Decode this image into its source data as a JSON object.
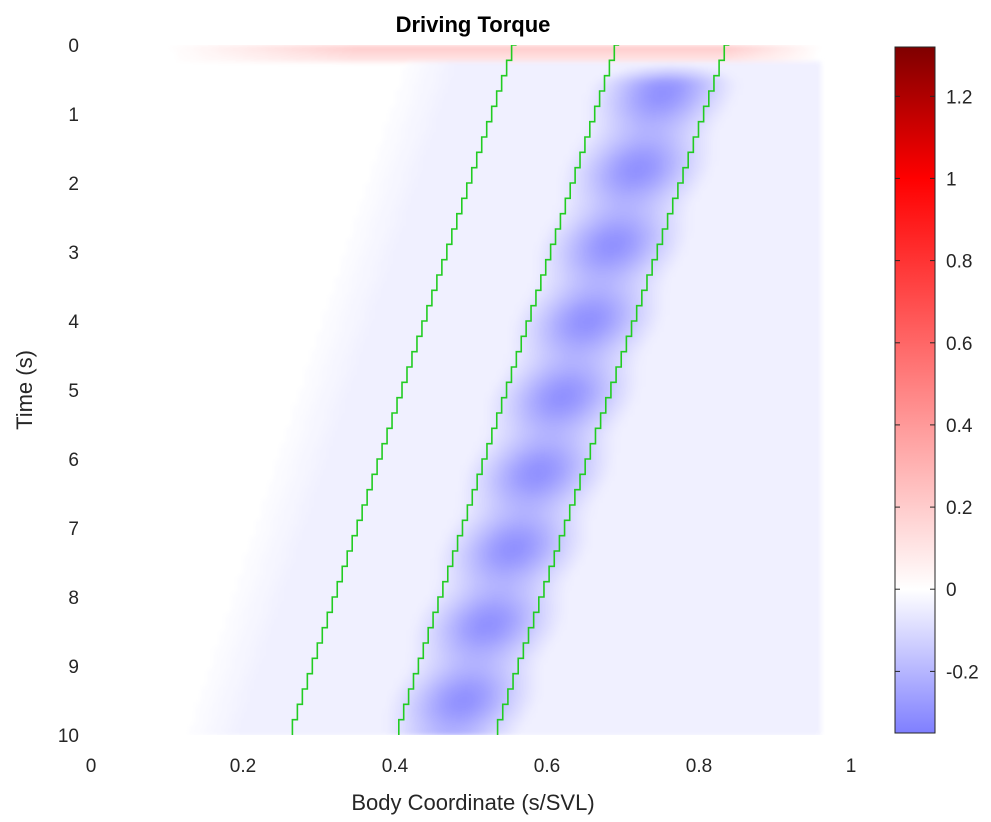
{
  "chart_data": {
    "type": "heatmap",
    "title": "Driving Torque",
    "xlabel": "Body Coordinate (s/SVL)",
    "ylabel": "Time (s)",
    "xlim": [
      0,
      1
    ],
    "ylim": [
      0,
      10
    ],
    "y_direction": "reversed",
    "x_ticks": [
      0,
      0.2,
      0.4,
      0.6,
      0.8,
      1
    ],
    "x_tick_labels": [
      "0",
      "0.2",
      "0.4",
      "0.6",
      "0.8",
      "1"
    ],
    "y_ticks": [
      0,
      1,
      2,
      3,
      4,
      5,
      6,
      7,
      8,
      9,
      10
    ],
    "y_tick_labels": [
      "0",
      "1",
      "2",
      "3",
      "4",
      "5",
      "6",
      "7",
      "8",
      "9",
      "10"
    ],
    "colorbar": {
      "range": [
        -0.35,
        1.32
      ],
      "ticks": [
        -0.2,
        0,
        0.2,
        0.4,
        0.6,
        0.8,
        1,
        1.2
      ],
      "tick_labels": [
        "-0.2",
        "0",
        "0.2",
        "0.4",
        "0.6",
        "0.8",
        "1",
        "1.2"
      ],
      "colormap": "blue-white-red",
      "colors": {
        "min": "#7f7fff",
        "zero": "#ffffff",
        "mid_pos": "#ff0000",
        "max": "#7f0000"
      }
    },
    "field": {
      "initial_band": {
        "t": [
          0,
          0.25
        ],
        "s": [
          0.1,
          0.96
        ],
        "peak_value": 0.22,
        "color": "#ff9a9a"
      },
      "negative_band": {
        "description": "traveling band of negative torque between the middle and right boundary lines",
        "peak_value": -0.3,
        "color": "#7f7fff"
      },
      "faint_region": {
        "s_max": 0.96,
        "value": -0.04
      }
    },
    "series": [
      {
        "name": "",
        "color": "#22cc22",
        "t": [
          0,
          10
        ],
        "s": [
          0.56,
          0.265
        ]
      },
      {
        "name": "",
        "color": "#22cc22",
        "t": [
          0,
          10
        ],
        "s": [
          0.695,
          0.405
        ]
      },
      {
        "name": "",
        "color": "#22cc22",
        "t": [
          0,
          10
        ],
        "s": [
          0.84,
          0.535
        ]
      }
    ],
    "grid": false,
    "legend": "none"
  }
}
